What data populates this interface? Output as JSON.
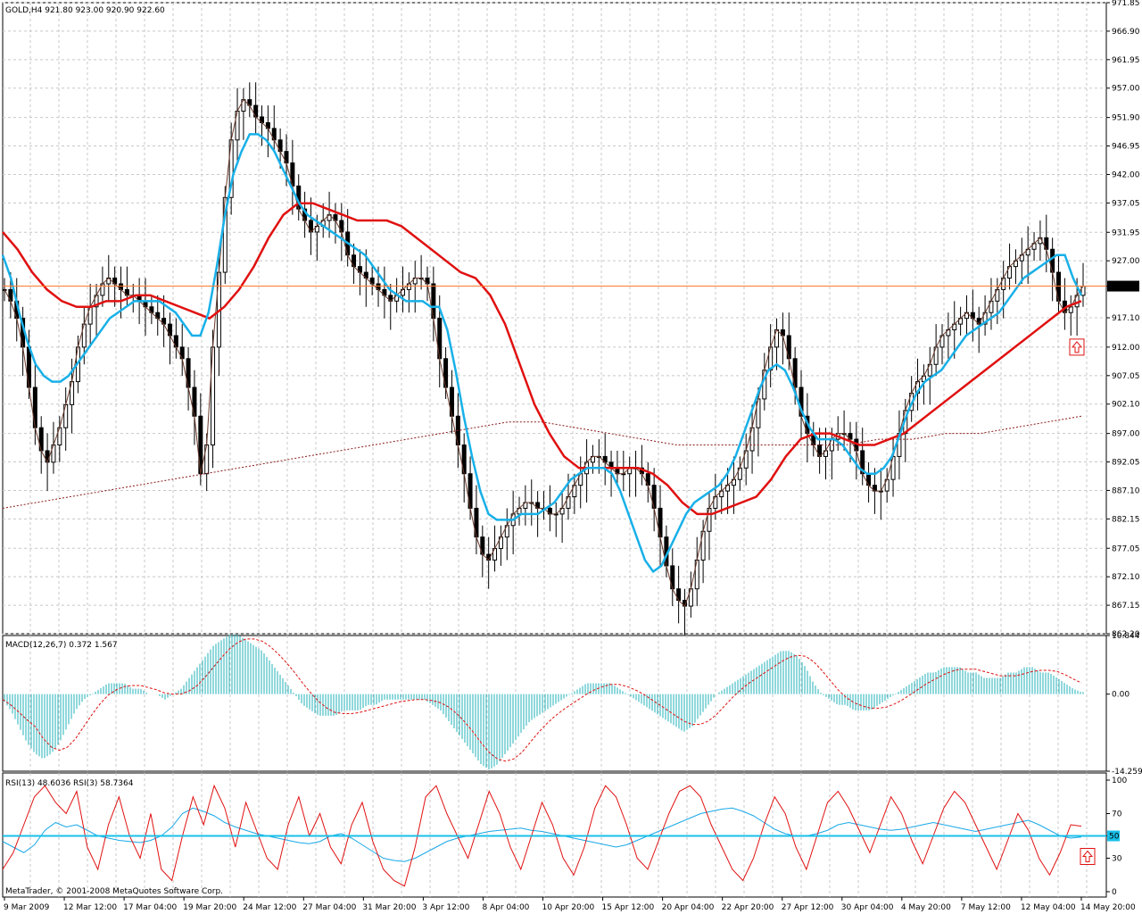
{
  "chart_data": [
    {
      "type": "candlestick",
      "title": "GOLD,H4  921.80 923.00 920.90 922.60",
      "symbol": "GOLD",
      "timeframe": "H4",
      "ohlc_last": {
        "open": 921.8,
        "high": 923.0,
        "low": 920.9,
        "close": 922.6
      },
      "current_price_label": "922.60",
      "ylim": [
        862.2,
        971.85
      ],
      "y_ticks": [
        "971.85",
        "966.90",
        "961.95",
        "957.00",
        "951.90",
        "946.95",
        "942.00",
        "937.05",
        "931.95",
        "927.00",
        "922.60",
        "917.10",
        "912.00",
        "907.05",
        "902.10",
        "897.00",
        "892.05",
        "887.10",
        "882.15",
        "877.05",
        "872.10",
        "867.15",
        "862.20"
      ],
      "close_series": [
        922,
        920,
        917,
        912,
        905,
        898,
        894,
        892,
        895,
        898,
        902,
        906,
        912,
        916,
        919,
        921,
        923,
        924,
        923,
        922,
        921,
        921,
        920,
        919,
        918,
        917,
        916,
        914,
        912,
        910,
        905,
        900,
        890,
        895,
        912,
        925,
        938,
        948,
        953,
        955,
        954,
        952,
        951,
        950,
        948,
        946,
        944,
        940,
        936,
        934,
        932,
        933,
        934,
        935,
        934,
        932,
        928,
        926,
        925,
        924,
        923,
        922,
        921,
        920,
        921,
        922,
        923,
        924,
        924,
        923,
        917,
        910,
        905,
        900,
        895,
        890,
        884,
        879,
        876,
        875,
        877,
        879,
        881,
        883,
        884,
        885,
        885,
        884,
        884,
        883,
        883,
        884,
        886,
        888,
        890,
        892,
        893,
        893,
        892,
        891,
        890,
        890,
        891,
        891,
        890,
        888,
        884,
        879,
        874,
        870,
        868,
        867,
        870,
        875,
        880,
        884,
        886,
        887,
        888,
        889,
        891,
        894,
        898,
        903,
        908,
        912,
        915,
        914,
        910,
        905,
        900,
        897,
        895,
        893,
        894,
        896,
        897,
        897,
        896,
        894,
        890,
        888,
        887,
        887,
        889,
        893,
        897,
        901,
        904,
        906,
        907,
        909,
        912,
        914,
        915,
        916,
        917,
        918,
        917,
        916,
        918,
        920,
        922,
        924,
        926,
        927,
        928,
        929,
        930,
        931,
        929,
        925,
        920,
        918,
        919,
        921,
        922.6
      ],
      "ma_fast": {
        "color": "#18b0e8",
        "values": [
          928,
          924,
          918,
          913,
          909,
          907,
          906,
          906,
          907,
          909,
          911,
          913,
          915,
          917,
          918,
          919,
          920,
          920,
          920,
          920,
          919,
          918,
          916,
          914,
          914,
          918,
          926,
          935,
          942,
          946,
          949,
          949,
          948,
          946,
          943,
          940,
          937,
          935,
          934,
          933,
          932,
          931,
          930,
          929,
          928,
          926,
          924,
          922,
          921,
          920,
          920,
          920,
          919,
          919,
          915,
          908,
          900,
          893,
          887,
          883,
          882,
          882,
          882,
          883,
          883,
          883,
          884,
          885,
          887,
          889,
          890,
          891,
          891,
          891,
          890,
          887,
          883,
          879,
          875,
          873,
          874,
          877,
          880,
          883,
          885,
          886,
          887,
          888,
          890,
          893,
          897,
          901,
          905,
          908,
          909,
          908,
          905,
          901,
          898,
          896,
          896,
          896,
          895,
          893,
          891,
          890,
          890,
          891,
          893,
          897,
          901,
          904,
          906,
          907,
          908,
          910,
          912,
          914,
          915,
          916,
          917,
          918,
          920,
          922,
          924,
          925,
          926,
          927,
          928,
          928,
          924,
          921
        ]
      },
      "ma_slow": {
        "color": "#e01010",
        "values": [
          932,
          929,
          925,
          922,
          920,
          919,
          919,
          920,
          920,
          921,
          921,
          920,
          919,
          918,
          917,
          919,
          922,
          926,
          931,
          935,
          937,
          937,
          936,
          935,
          934,
          934,
          934,
          933,
          931,
          929,
          927,
          925,
          924,
          921,
          916,
          909,
          902,
          897,
          893,
          891,
          891,
          891,
          891,
          891,
          890,
          888,
          885,
          883,
          883,
          884,
          885,
          886,
          889,
          893,
          896,
          897,
          897,
          896,
          895,
          895,
          896,
          897,
          899,
          901,
          903,
          905,
          907,
          909,
          911,
          913,
          915,
          917,
          919,
          920
        ]
      },
      "ma_long": {
        "color": "#8b1a1a",
        "values": [
          884,
          885,
          886,
          887,
          888,
          889,
          890,
          891,
          892,
          893,
          894,
          895,
          896,
          897,
          898,
          899,
          899,
          898,
          897,
          896,
          895,
          895,
          895,
          895,
          895,
          895,
          896,
          896,
          897,
          897,
          898,
          899,
          900
        ]
      },
      "horizontal_line": {
        "value": 922.6,
        "color": "#ff7a30"
      },
      "signal_marker": {
        "type": "up-arrow",
        "color": "#e01010"
      }
    },
    {
      "type": "histogram",
      "title": "MACD(12,26,7) 0.372 1.567",
      "ylim": [
        -14.259,
        10.844
      ],
      "y_ticks": [
        "10.844",
        "0.00",
        "-14.259"
      ],
      "histogram_color": "#20b0b8",
      "signal_color": "#e01010",
      "values": [
        -1,
        -3,
        -6,
        -9,
        -11,
        -12,
        -11,
        -9,
        -6,
        -3,
        -1,
        0,
        1,
        2,
        2,
        2,
        1,
        1,
        0,
        0,
        -1,
        0,
        1,
        3,
        5,
        7,
        9,
        10,
        11,
        11,
        10,
        9,
        8,
        6,
        4,
        2,
        0,
        -2,
        -3,
        -4,
        -4,
        -4,
        -3,
        -3,
        -3,
        -2,
        -2,
        -1,
        -1,
        -1,
        -1,
        -1,
        -1,
        -2,
        -3,
        -5,
        -7,
        -9,
        -11,
        -13,
        -14,
        -13,
        -11,
        -9,
        -7,
        -5,
        -4,
        -3,
        -2,
        -1,
        0,
        1,
        2,
        2,
        2,
        2,
        1,
        0,
        -1,
        -2,
        -3,
        -4,
        -5,
        -6,
        -7,
        -6,
        -4,
        -2,
        0,
        1,
        2,
        3,
        4,
        5,
        6,
        7,
        8,
        8,
        7,
        5,
        2,
        0,
        -1,
        -2,
        -2,
        -3,
        -3,
        -3,
        -2,
        -1,
        0,
        1,
        2,
        3,
        4,
        4,
        5,
        5,
        5,
        4,
        4,
        3,
        3,
        3,
        4,
        4,
        5,
        5,
        4,
        4,
        3,
        2,
        1,
        0.372
      ]
    },
    {
      "type": "line",
      "title": "RSI(13) 48.6036  RSI(3) 58.7364",
      "ylim": [
        0,
        100
      ],
      "y_ticks": [
        "100",
        "70",
        "50",
        "30",
        "0"
      ],
      "level_line": {
        "value": 50,
        "color": "#18c0e8",
        "label": "50"
      },
      "series": [
        {
          "name": "RSI(13)",
          "color": "#18a8e8",
          "values": [
            45,
            40,
            35,
            42,
            55,
            62,
            58,
            60,
            55,
            50,
            48,
            46,
            45,
            44,
            46,
            50,
            58,
            70,
            75,
            72,
            68,
            62,
            58,
            55,
            52,
            50,
            48,
            46,
            44,
            43,
            45,
            50,
            52,
            48,
            42,
            36,
            30,
            28,
            27,
            30,
            35,
            40,
            45,
            48,
            50,
            52,
            54,
            55,
            56,
            57,
            55,
            54,
            52,
            50,
            48,
            46,
            44,
            42,
            40,
            42,
            46,
            50,
            54,
            58,
            62,
            66,
            70,
            72,
            74,
            75,
            72,
            68,
            62,
            56,
            52,
            50,
            50,
            52,
            55,
            60,
            62,
            60,
            58,
            56,
            55,
            56,
            58,
            60,
            62,
            60,
            58,
            56,
            54,
            56,
            58,
            60,
            62,
            64,
            60,
            55,
            50,
            48,
            49
          ]
        },
        {
          "name": "RSI(3)",
          "color": "#e01010",
          "values": [
            20,
            35,
            60,
            85,
            95,
            80,
            70,
            90,
            40,
            20,
            60,
            85,
            50,
            30,
            70,
            20,
            10,
            50,
            85,
            60,
            95,
            75,
            40,
            80,
            55,
            30,
            20,
            60,
            85,
            50,
            70,
            40,
            25,
            60,
            80,
            45,
            20,
            10,
            5,
            40,
            85,
            95,
            70,
            50,
            30,
            60,
            90,
            70,
            40,
            20,
            50,
            80,
            60,
            30,
            15,
            40,
            75,
            95,
            85,
            60,
            30,
            20,
            45,
            70,
            90,
            95,
            85,
            60,
            40,
            20,
            10,
            30,
            60,
            85,
            70,
            40,
            20,
            50,
            80,
            90,
            75,
            55,
            35,
            60,
            85,
            70,
            45,
            25,
            50,
            75,
            90,
            80,
            60,
            40,
            20,
            45,
            70,
            55,
            30,
            15,
            35,
            60,
            58.7364
          ]
        }
      ]
    }
  ],
  "x_axis_labels": [
    "9 Mar 2009",
    "12 Mar 12:00",
    "17 Mar 04:00",
    "19 Mar 20:00",
    "24 Mar 12:00",
    "27 Mar 04:00",
    "31 Mar 20:00",
    "3 Apr 12:00",
    "8 Apr 04:00",
    "10 Apr 20:00",
    "15 Apr 12:00",
    "20 Apr 04:00",
    "22 Apr 20:00",
    "27 Apr 12:00",
    "30 Apr 04:00",
    "4 May 20:00",
    "7 May 12:00",
    "12 May 04:00",
    "14 May 20:00"
  ],
  "copyright": "MetaTrader, © 2001-2008 MetaQuotes Software Corp."
}
